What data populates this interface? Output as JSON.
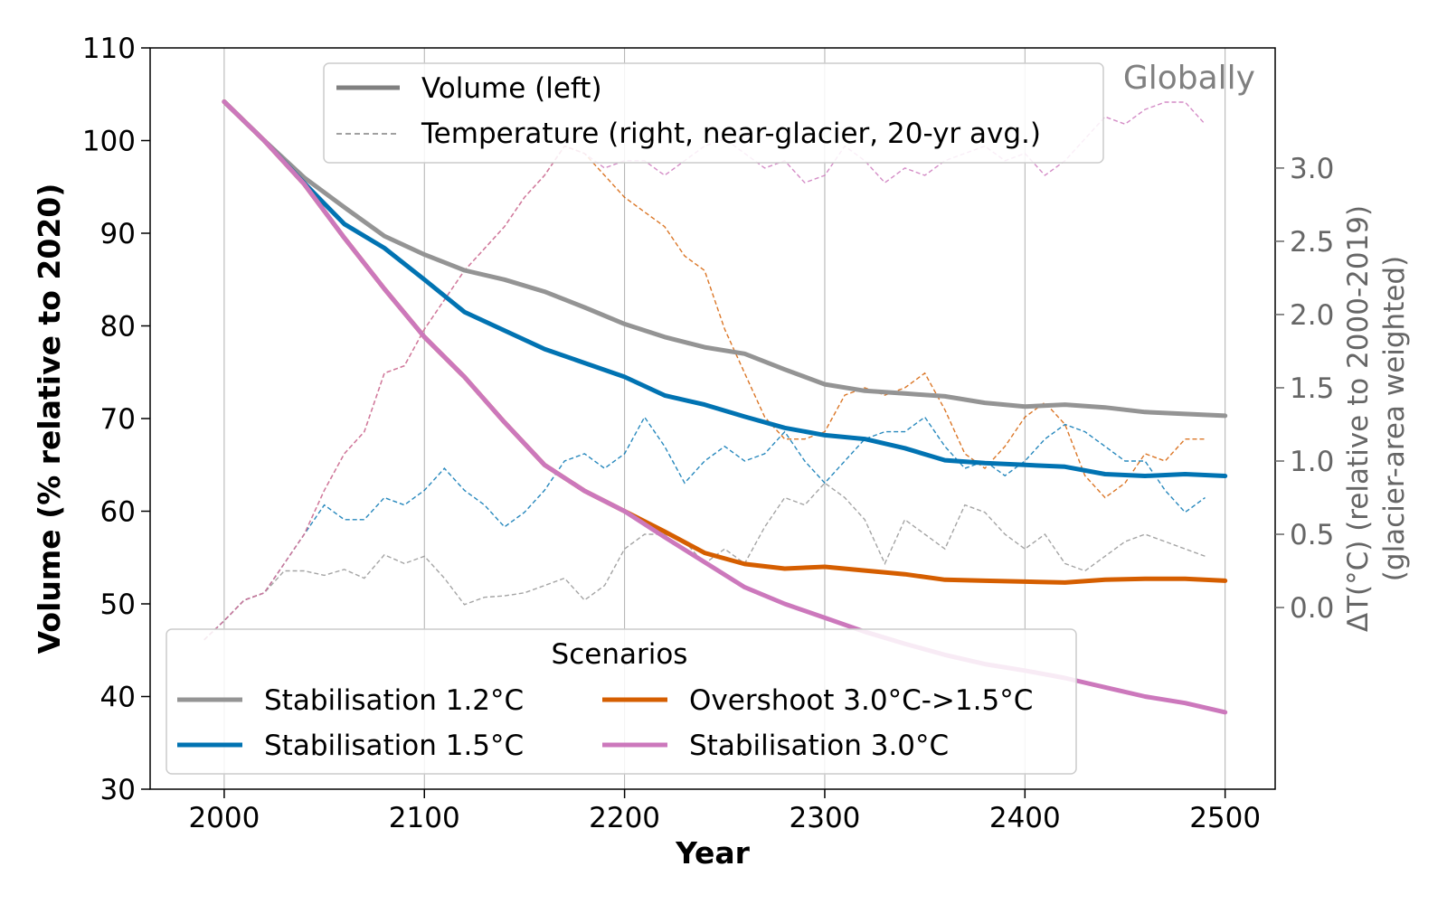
{
  "chart_data": {
    "type": "line",
    "title": "",
    "annotation": "Globally",
    "xlabel": "Year",
    "ylabel": "Volume (% relative to 2020)",
    "y2label_line1": "ΔT(°C) (relative to 2000-2019)",
    "y2label_line2": "(glacier-area weighted)",
    "xlim": [
      1963,
      2525
    ],
    "ylim": [
      30,
      110
    ],
    "y2lim": [
      -1.24,
      3.82
    ],
    "x_ticks": [
      2000,
      2100,
      2200,
      2300,
      2400,
      2500
    ],
    "y_ticks": [
      30,
      40,
      50,
      60,
      70,
      80,
      90,
      100,
      110
    ],
    "y2_ticks": [
      0.0,
      0.5,
      1.0,
      1.5,
      2.0,
      2.5,
      3.0
    ],
    "y2_tick_labels": [
      "0.0",
      "0.5",
      "1.0",
      "1.5",
      "2.0",
      "2.5",
      "3.0"
    ],
    "grid": "vertical",
    "colors": {
      "s12": "#949494",
      "s15": "#0173b2",
      "o30": "#d55e00",
      "s30": "#cc78bc",
      "legend_gray": "#808080"
    },
    "style_legend": {
      "placement": "top-center",
      "items": [
        {
          "label": "Volume (left)",
          "style": "solid"
        },
        {
          "label": "Temperature (right, near-glacier, 20-yr avg.)",
          "style": "dashed"
        }
      ]
    },
    "scenario_legend": {
      "title": "Scenarios",
      "placement": "lower-left",
      "items": [
        {
          "label": "Stabilisation 1.2°C",
          "key": "s12"
        },
        {
          "label": "Stabilisation 1.5°C",
          "key": "s15"
        },
        {
          "label": "Overshoot 3.0°C->1.5°C",
          "key": "o30"
        },
        {
          "label": "Stabilisation 3.0°C",
          "key": "s30"
        }
      ]
    },
    "volume_series": [
      {
        "name": "Stabilisation 1.2°C",
        "key": "s12",
        "x": [
          2000,
          2020,
          2040,
          2060,
          2080,
          2100,
          2120,
          2140,
          2160,
          2180,
          2200,
          2220,
          2240,
          2260,
          2280,
          2300,
          2320,
          2340,
          2360,
          2380,
          2400,
          2420,
          2440,
          2460,
          2480,
          2500
        ],
        "y": [
          104.2,
          100.0,
          96.0,
          92.8,
          89.7,
          87.7,
          86.0,
          85.0,
          83.7,
          82.0,
          80.2,
          78.8,
          77.7,
          77.0,
          75.3,
          73.7,
          73.0,
          72.7,
          72.4,
          71.7,
          71.3,
          71.5,
          71.2,
          70.7,
          70.5,
          70.3
        ]
      },
      {
        "name": "Stabilisation 1.5°C",
        "key": "s15",
        "x": [
          2000,
          2020,
          2040,
          2060,
          2080,
          2100,
          2120,
          2140,
          2160,
          2180,
          2200,
          2220,
          2240,
          2260,
          2280,
          2300,
          2320,
          2340,
          2360,
          2380,
          2400,
          2420,
          2440,
          2460,
          2480,
          2500
        ],
        "y": [
          104.2,
          100.0,
          95.4,
          91.0,
          88.4,
          85.0,
          81.5,
          79.5,
          77.5,
          76.0,
          74.5,
          72.5,
          71.5,
          70.2,
          69.0,
          68.2,
          67.8,
          66.8,
          65.5,
          65.2,
          65.0,
          64.8,
          64.0,
          63.8,
          64.0,
          63.8
        ]
      },
      {
        "name": "Overshoot 3.0°C->1.5°C",
        "key": "o30",
        "x": [
          2000,
          2020,
          2040,
          2060,
          2080,
          2100,
          2120,
          2140,
          2160,
          2180,
          2200,
          2220,
          2240,
          2260,
          2280,
          2300,
          2320,
          2340,
          2360,
          2380,
          2400,
          2420,
          2440,
          2460,
          2480,
          2500
        ],
        "y": [
          104.2,
          100.0,
          95.3,
          89.5,
          84.0,
          78.8,
          74.5,
          69.6,
          65.0,
          62.2,
          60.0,
          57.8,
          55.5,
          54.3,
          53.8,
          54.0,
          53.6,
          53.2,
          52.6,
          52.5,
          52.4,
          52.3,
          52.6,
          52.7,
          52.7,
          52.5
        ]
      },
      {
        "name": "Stabilisation 3.0°C",
        "key": "s30",
        "x": [
          2000,
          2020,
          2040,
          2060,
          2080,
          2100,
          2120,
          2140,
          2160,
          2180,
          2200,
          2220,
          2240,
          2260,
          2280,
          2300,
          2320,
          2340,
          2360,
          2380,
          2400,
          2420,
          2440,
          2460,
          2480,
          2500
        ],
        "y": [
          104.2,
          100.0,
          95.3,
          89.5,
          84.0,
          78.8,
          74.5,
          69.6,
          65.0,
          62.2,
          60.0,
          57.2,
          54.5,
          51.8,
          50.0,
          48.5,
          47.0,
          45.7,
          44.5,
          43.5,
          42.8,
          42.0,
          41.0,
          40.0,
          39.3,
          38.3
        ]
      }
    ],
    "temperature_series": [
      {
        "name": "Stabilisation 1.2°C",
        "key": "s12",
        "x": [
          1990,
          2000,
          2010,
          2020,
          2030,
          2040,
          2050,
          2060,
          2070,
          2080,
          2090,
          2100,
          2110,
          2120,
          2130,
          2140,
          2150,
          2160,
          2170,
          2180,
          2190,
          2200,
          2210,
          2220,
          2230,
          2240,
          2250,
          2260,
          2270,
          2280,
          2290,
          2300,
          2310,
          2320,
          2330,
          2340,
          2350,
          2360,
          2370,
          2380,
          2390,
          2400,
          2410,
          2420,
          2430,
          2440,
          2450,
          2460,
          2470,
          2480,
          2490
        ],
        "y": [
          -0.22,
          -0.09,
          0.05,
          0.1,
          0.25,
          0.25,
          0.22,
          0.26,
          0.2,
          0.36,
          0.3,
          0.35,
          0.2,
          0.02,
          0.07,
          0.08,
          0.1,
          0.15,
          0.2,
          0.05,
          0.15,
          0.4,
          0.5,
          0.5,
          0.45,
          0.3,
          0.4,
          0.3,
          0.55,
          0.75,
          0.7,
          0.85,
          0.75,
          0.6,
          0.3,
          0.6,
          0.5,
          0.4,
          0.7,
          0.65,
          0.5,
          0.4,
          0.5,
          0.3,
          0.25,
          0.35,
          0.45,
          0.5,
          0.45,
          0.4,
          0.35
        ]
      },
      {
        "name": "Stabilisation 1.5°C",
        "key": "s15",
        "x": [
          1990,
          2000,
          2010,
          2020,
          2030,
          2040,
          2050,
          2060,
          2070,
          2080,
          2090,
          2100,
          2110,
          2120,
          2130,
          2140,
          2150,
          2160,
          2170,
          2180,
          2190,
          2200,
          2210,
          2220,
          2230,
          2240,
          2250,
          2260,
          2270,
          2280,
          2290,
          2300,
          2310,
          2320,
          2330,
          2340,
          2350,
          2360,
          2370,
          2380,
          2390,
          2400,
          2410,
          2420,
          2430,
          2440,
          2450,
          2460,
          2470,
          2480,
          2490
        ],
        "y": [
          -0.22,
          -0.09,
          0.05,
          0.1,
          0.3,
          0.5,
          0.7,
          0.6,
          0.6,
          0.75,
          0.7,
          0.8,
          0.95,
          0.8,
          0.7,
          0.55,
          0.65,
          0.8,
          1.0,
          1.05,
          0.95,
          1.05,
          1.3,
          1.1,
          0.85,
          1.0,
          1.1,
          1.0,
          1.05,
          1.2,
          1.0,
          0.85,
          1.0,
          1.15,
          1.2,
          1.2,
          1.3,
          1.1,
          0.95,
          1.0,
          0.9,
          1.0,
          1.15,
          1.25,
          1.2,
          1.1,
          1.0,
          1.0,
          0.8,
          0.65,
          0.75
        ]
      },
      {
        "name": "Overshoot 3.0°C->1.5°C",
        "key": "o30",
        "x": [
          1990,
          2000,
          2010,
          2020,
          2030,
          2040,
          2050,
          2060,
          2070,
          2080,
          2090,
          2100,
          2110,
          2120,
          2130,
          2140,
          2150,
          2160,
          2170,
          2180,
          2190,
          2200,
          2210,
          2220,
          2230,
          2240,
          2250,
          2260,
          2270,
          2280,
          2290,
          2300,
          2310,
          2320,
          2330,
          2340,
          2350,
          2360,
          2370,
          2380,
          2390,
          2400,
          2410,
          2420,
          2430,
          2440,
          2450,
          2460,
          2470,
          2480,
          2490
        ],
        "y": [
          -0.22,
          -0.09,
          0.05,
          0.1,
          0.3,
          0.5,
          0.8,
          1.05,
          1.2,
          1.6,
          1.65,
          1.9,
          2.1,
          2.3,
          2.45,
          2.6,
          2.8,
          2.95,
          3.15,
          3.1,
          2.95,
          2.8,
          2.7,
          2.6,
          2.4,
          2.3,
          1.9,
          1.6,
          1.3,
          1.15,
          1.15,
          1.2,
          1.45,
          1.5,
          1.45,
          1.5,
          1.6,
          1.35,
          1.05,
          0.95,
          1.1,
          1.3,
          1.4,
          1.25,
          0.9,
          0.75,
          0.85,
          1.05,
          1.0,
          1.15,
          1.15
        ]
      },
      {
        "name": "Stabilisation 3.0°C",
        "key": "s30",
        "x": [
          1990,
          2000,
          2010,
          2020,
          2030,
          2040,
          2050,
          2060,
          2070,
          2080,
          2090,
          2100,
          2110,
          2120,
          2130,
          2140,
          2150,
          2160,
          2170,
          2180,
          2190,
          2200,
          2210,
          2220,
          2230,
          2240,
          2250,
          2260,
          2270,
          2280,
          2290,
          2300,
          2310,
          2320,
          2330,
          2340,
          2350,
          2360,
          2370,
          2380,
          2390,
          2400,
          2410,
          2420,
          2430,
          2440,
          2450,
          2460,
          2470,
          2480,
          2490
        ],
        "y": [
          -0.22,
          -0.09,
          0.05,
          0.1,
          0.3,
          0.5,
          0.8,
          1.05,
          1.2,
          1.6,
          1.65,
          1.9,
          2.1,
          2.3,
          2.45,
          2.6,
          2.8,
          2.95,
          3.15,
          3.1,
          3.0,
          3.05,
          3.05,
          2.95,
          3.05,
          3.15,
          3.2,
          3.1,
          3.0,
          3.05,
          2.9,
          2.95,
          3.15,
          3.05,
          2.9,
          3.0,
          2.95,
          3.05,
          3.1,
          3.15,
          3.05,
          3.1,
          2.95,
          3.05,
          3.2,
          3.35,
          3.3,
          3.4,
          3.45,
          3.45,
          3.3
        ]
      }
    ]
  }
}
